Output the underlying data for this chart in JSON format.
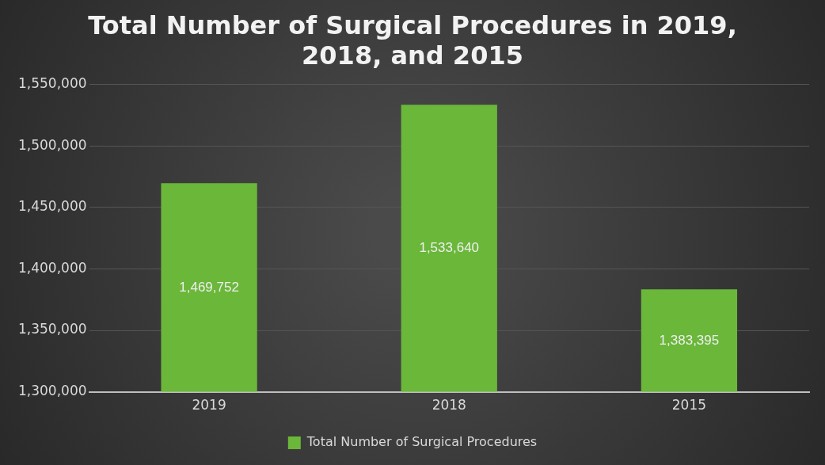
{
  "chart_data": {
    "type": "bar",
    "title": "Total Number of Surgical Procedures in 2019, 2018, and 2015",
    "categories": [
      "2019",
      "2018",
      "2015"
    ],
    "series": [
      {
        "name": "Total Number of Surgical Procedures",
        "color": "#6ab73a",
        "values": [
          1469752,
          1533640,
          1383395
        ],
        "value_labels": [
          "1,469,752",
          "1,533,640",
          "1,383,395"
        ]
      }
    ],
    "ylim": [
      1300000,
      1550000
    ],
    "yticks": [
      {
        "value": 1300000,
        "label": "1,300,000"
      },
      {
        "value": 1350000,
        "label": "1,350,000"
      },
      {
        "value": 1400000,
        "label": "1,400,000"
      },
      {
        "value": 1450000,
        "label": "1,450,000"
      },
      {
        "value": 1500000,
        "label": "1,500,000"
      },
      {
        "value": 1550000,
        "label": "1,550,000"
      }
    ],
    "grid": "y",
    "legend": "bottom"
  }
}
